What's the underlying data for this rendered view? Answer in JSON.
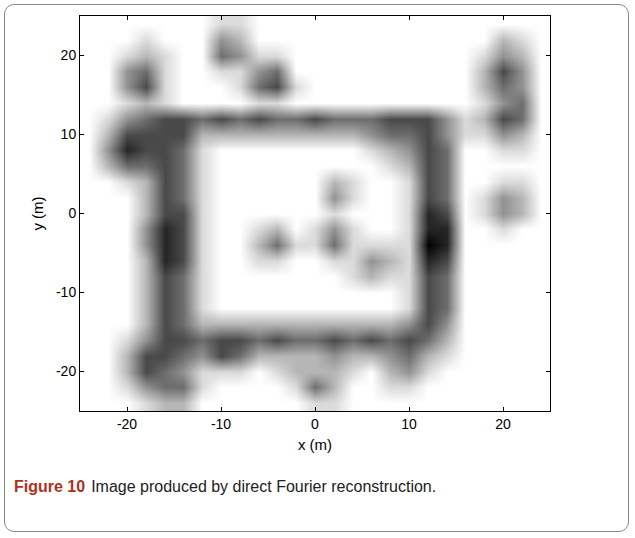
{
  "chart_data": {
    "type": "heatmap",
    "x_label": "x (m)",
    "y_label": "y (m)",
    "xlim": [
      -25,
      25
    ],
    "ylim": [
      -25,
      25
    ],
    "xticks": [
      -20,
      -10,
      0,
      10,
      20
    ],
    "yticks": [
      -20,
      -10,
      0,
      10,
      20
    ],
    "grid": false,
    "color": "#000000",
    "x": [
      -24,
      -22,
      -20,
      -18,
      -16,
      -14,
      -12,
      -10,
      -8,
      -6,
      -4,
      -2,
      0,
      2,
      4,
      6,
      8,
      10,
      12,
      14,
      16,
      18,
      20,
      22,
      24
    ],
    "y": [
      -24,
      -22,
      -20,
      -18,
      -16,
      -14,
      -12,
      -10,
      -8,
      -6,
      -4,
      -2,
      0,
      2,
      4,
      6,
      8,
      10,
      12,
      14,
      16,
      18,
      20,
      22,
      24
    ],
    "z": [
      [
        0,
        0,
        0,
        1,
        2,
        2,
        0,
        0,
        0,
        0,
        0,
        0,
        1,
        1,
        0,
        0,
        0,
        0,
        0,
        0,
        0,
        0,
        0,
        0,
        0
      ],
      [
        0,
        0,
        1,
        3,
        4,
        4,
        1,
        0,
        0,
        0,
        0,
        1,
        4,
        2,
        0,
        0,
        1,
        1,
        0,
        0,
        0,
        0,
        0,
        0,
        0
      ],
      [
        0,
        0,
        2,
        5,
        4,
        3,
        1,
        1,
        1,
        0,
        1,
        2,
        2,
        2,
        1,
        0,
        2,
        3,
        1,
        0,
        0,
        0,
        0,
        0,
        0
      ],
      [
        0,
        0,
        2,
        5,
        5,
        4,
        3,
        5,
        4,
        2,
        2,
        2,
        2,
        3,
        2,
        2,
        3,
        4,
        2,
        1,
        0,
        0,
        0,
        0,
        0
      ],
      [
        0,
        0,
        1,
        3,
        5,
        5,
        4,
        5,
        5,
        4,
        5,
        4,
        4,
        5,
        4,
        5,
        4,
        5,
        4,
        2,
        0,
        0,
        0,
        0,
        0
      ],
      [
        0,
        0,
        0,
        2,
        5,
        4,
        2,
        2,
        2,
        2,
        2,
        2,
        2,
        2,
        2,
        2,
        2,
        3,
        5,
        3,
        0,
        0,
        0,
        0,
        0
      ],
      [
        0,
        0,
        0,
        2,
        5,
        4,
        1,
        0,
        0,
        0,
        0,
        0,
        0,
        0,
        0,
        0,
        0,
        1,
        5,
        4,
        0,
        0,
        0,
        0,
        0
      ],
      [
        0,
        0,
        0,
        2,
        5,
        4,
        1,
        0,
        0,
        0,
        0,
        0,
        0,
        0,
        0,
        0,
        0,
        1,
        5,
        4,
        0,
        0,
        0,
        0,
        0
      ],
      [
        0,
        0,
        0,
        2,
        5,
        4,
        1,
        0,
        0,
        0,
        0,
        0,
        0,
        0,
        1,
        2,
        1,
        1,
        5,
        4,
        0,
        0,
        0,
        0,
        0
      ],
      [
        0,
        0,
        0,
        2,
        6,
        5,
        1,
        0,
        0,
        1,
        1,
        0,
        0,
        1,
        1,
        3,
        2,
        1,
        6,
        5,
        0,
        0,
        0,
        0,
        0
      ],
      [
        0,
        0,
        0,
        3,
        6,
        5,
        1,
        0,
        0,
        2,
        4,
        1,
        1,
        4,
        1,
        1,
        1,
        1,
        7,
        6,
        0,
        0,
        0,
        0,
        0
      ],
      [
        0,
        0,
        0,
        3,
        6,
        5,
        1,
        0,
        0,
        1,
        2,
        0,
        1,
        3,
        1,
        0,
        0,
        1,
        6,
        6,
        0,
        0,
        1,
        0,
        0
      ],
      [
        0,
        0,
        0,
        2,
        5,
        5,
        1,
        0,
        0,
        0,
        0,
        0,
        0,
        1,
        0,
        0,
        0,
        1,
        6,
        5,
        0,
        1,
        3,
        2,
        0
      ],
      [
        0,
        0,
        0,
        2,
        5,
        4,
        1,
        0,
        0,
        0,
        0,
        0,
        0,
        3,
        1,
        0,
        0,
        1,
        5,
        4,
        0,
        1,
        3,
        2,
        0
      ],
      [
        0,
        0,
        1,
        2,
        5,
        4,
        1,
        0,
        0,
        0,
        0,
        0,
        0,
        2,
        1,
        0,
        0,
        1,
        5,
        4,
        0,
        0,
        1,
        1,
        0
      ],
      [
        0,
        2,
        4,
        4,
        5,
        4,
        1,
        0,
        0,
        0,
        0,
        0,
        0,
        0,
        0,
        0,
        1,
        2,
        5,
        4,
        0,
        0,
        0,
        0,
        0
      ],
      [
        0,
        3,
        6,
        5,
        5,
        4,
        1,
        0,
        0,
        0,
        0,
        0,
        0,
        0,
        0,
        1,
        2,
        3,
        5,
        4,
        0,
        0,
        1,
        1,
        0
      ],
      [
        0,
        2,
        5,
        5,
        5,
        5,
        2,
        2,
        2,
        2,
        2,
        2,
        2,
        2,
        2,
        3,
        4,
        4,
        5,
        3,
        1,
        1,
        3,
        2,
        0
      ],
      [
        0,
        1,
        3,
        4,
        5,
        5,
        4,
        5,
        4,
        5,
        4,
        4,
        5,
        4,
        4,
        4,
        5,
        5,
        5,
        3,
        1,
        2,
        5,
        4,
        0
      ],
      [
        0,
        0,
        1,
        2,
        1,
        0,
        0,
        0,
        0,
        1,
        1,
        0,
        0,
        0,
        0,
        0,
        0,
        0,
        0,
        0,
        0,
        1,
        3,
        4,
        0
      ],
      [
        0,
        0,
        3,
        5,
        1,
        0,
        0,
        0,
        1,
        4,
        5,
        1,
        0,
        0,
        0,
        0,
        0,
        0,
        0,
        0,
        0,
        2,
        4,
        3,
        0
      ],
      [
        0,
        0,
        3,
        4,
        1,
        0,
        0,
        1,
        1,
        3,
        4,
        0,
        0,
        0,
        0,
        0,
        0,
        0,
        0,
        0,
        0,
        2,
        5,
        3,
        0
      ],
      [
        0,
        0,
        1,
        2,
        1,
        0,
        0,
        4,
        3,
        1,
        1,
        0,
        0,
        0,
        0,
        0,
        0,
        0,
        0,
        0,
        0,
        1,
        3,
        2,
        0
      ],
      [
        0,
        0,
        0,
        1,
        0,
        0,
        0,
        3,
        2,
        0,
        0,
        0,
        0,
        0,
        0,
        0,
        0,
        0,
        0,
        0,
        0,
        0,
        2,
        1,
        0
      ],
      [
        0,
        0,
        0,
        0,
        0,
        0,
        0,
        1,
        1,
        0,
        0,
        0,
        0,
        0,
        0,
        0,
        0,
        0,
        0,
        0,
        0,
        0,
        0,
        0,
        0
      ]
    ]
  },
  "caption": {
    "label": "Figure 10",
    "text": "Image produced by direct Fourier reconstruction."
  }
}
